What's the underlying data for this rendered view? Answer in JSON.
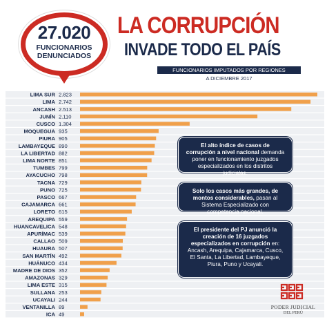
{
  "badge": {
    "number": "27.020",
    "label_line1": "FUNCIONARIOS",
    "label_line2": "DENUNCIADOS"
  },
  "header": {
    "title_line1": "LA CORRUPCIÓN",
    "title_line2": "INVADE TODO EL PAÍS",
    "subtitle": "FUNCIONARIOS IMPUTADOS POR REGIONES",
    "date": "A DICIEMBRE 2017"
  },
  "colors": {
    "bar": "#f0a04b",
    "accent_red": "#cc2b23",
    "navy": "#1b2a4a",
    "row_bg": "#eef0f3"
  },
  "chart_data": {
    "type": "bar",
    "orientation": "horizontal",
    "categories": [
      "LIMA SUR",
      "LIMA",
      "ANCASH",
      "JUNÍN",
      "CUSCO",
      "MOQUEGUA",
      "PIURA",
      "LAMBAYEQUE",
      "LA LIBERTAD",
      "LIMA NORTE",
      "TUMBES",
      "AYACUCHO",
      "TACNA",
      "PUNO",
      "PASCO",
      "CAJAMARCA",
      "LORETO",
      "AREQUIPA",
      "HUANCAVELICA",
      "APURÍMAC",
      "CALLAO",
      "HUAURA",
      "SAN MARTÍN",
      "HUÁNUCO",
      "MADRE DE DIOS",
      "AMAZONAS",
      "LIMA ESTE",
      "SULLANA",
      "UCAYALI",
      "VENTANILLA",
      "ICA"
    ],
    "values": [
      2823,
      2742,
      2513,
      2110,
      1304,
      935,
      905,
      890,
      882,
      851,
      799,
      798,
      729,
      725,
      667,
      661,
      615,
      559,
      548,
      539,
      509,
      507,
      492,
      434,
      352,
      329,
      315,
      253,
      244,
      89,
      49
    ],
    "value_labels": [
      "2.823",
      "2.742",
      "2.513",
      "2.110",
      "1.304",
      "935",
      "905",
      "890",
      "882",
      "851",
      "799",
      "798",
      "729",
      "725",
      "667",
      "661",
      "615",
      "559",
      "548",
      "539",
      "509",
      "507",
      "492",
      "434",
      "352",
      "329",
      "315",
      "253",
      "244",
      "89",
      "49"
    ]
  },
  "info_boxes": [
    {
      "segments": [
        {
          "text": "El alto índice de casos de corrupción a nivel nacional",
          "bold": true
        },
        {
          "text": " demanda poner en funcionamiento juzgados especializados en los distritos judiciales.",
          "bold": false
        }
      ]
    },
    {
      "segments": [
        {
          "text": "Solo los casos más grandes, de montos considerables,",
          "bold": true
        },
        {
          "text": " pasan al Sistema Especializado con competencia nacional.",
          "bold": false
        }
      ]
    },
    {
      "segments": [
        {
          "text": "El presidente del PJ anunció la creación de 16 juzgados especializados en corrupción",
          "bold": true
        },
        {
          "text": " en: Ancash, Arequipa, Cajamarca, Cusco, El Santa, La Libertad, Lambayeque, Piura, Puno y Ucayali.",
          "bold": false
        }
      ]
    }
  ],
  "logo": {
    "line1": "PODER JUDICIAL",
    "line2": "DEL PERÚ"
  }
}
